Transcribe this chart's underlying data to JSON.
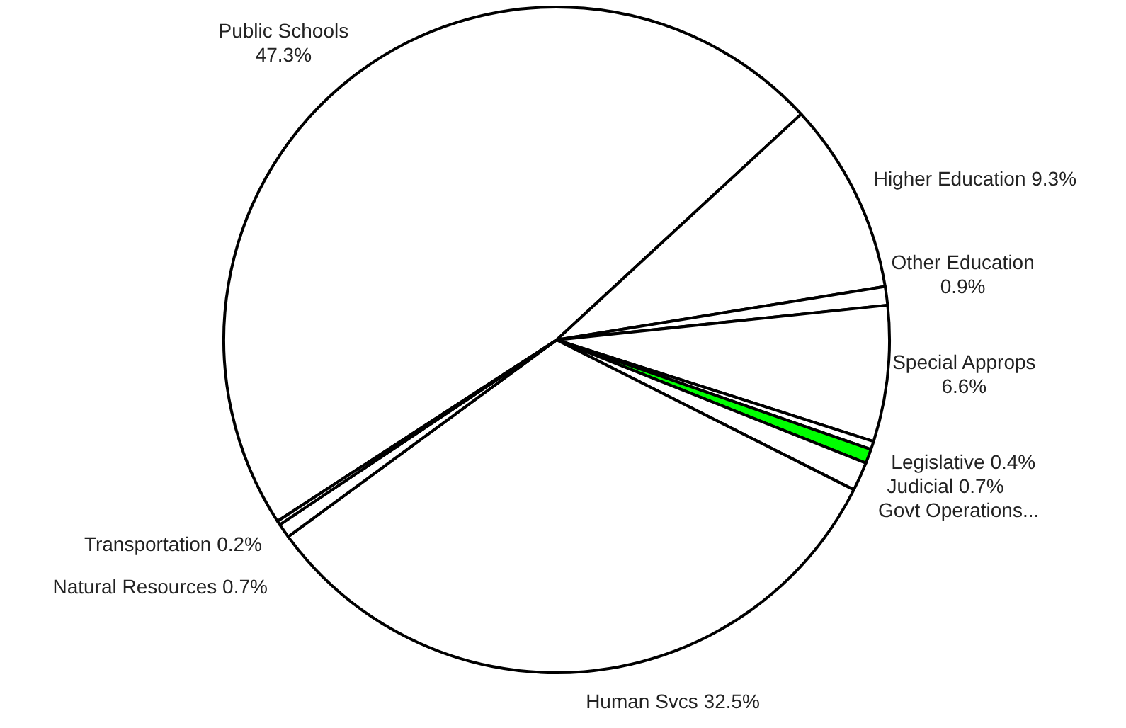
{
  "chart_data": {
    "type": "pie",
    "categories": [
      "Public Schools",
      "Higher Education",
      "Other Education",
      "Special Approps",
      "Legislative",
      "Judicial",
      "Govt Operations...",
      "Human Svcs",
      "Natural Resources",
      "Transportation"
    ],
    "values": [
      47.3,
      9.3,
      0.9,
      6.6,
      0.4,
      0.7,
      1.4,
      32.5,
      0.7,
      0.2
    ],
    "value_labels": [
      "47.3%",
      "9.3%",
      "0.9%",
      "6.6%",
      "0.4%",
      "0.7%",
      null,
      "32.5%",
      "0.7%",
      "0.2%"
    ],
    "colors": [
      "#ffffff",
      "#ffffff",
      "#ffffff",
      "#ffffff",
      "#ffffff",
      "#00ff00",
      "#ffffff",
      "#ffffff",
      "#ffffff",
      "#ffffff"
    ]
  }
}
